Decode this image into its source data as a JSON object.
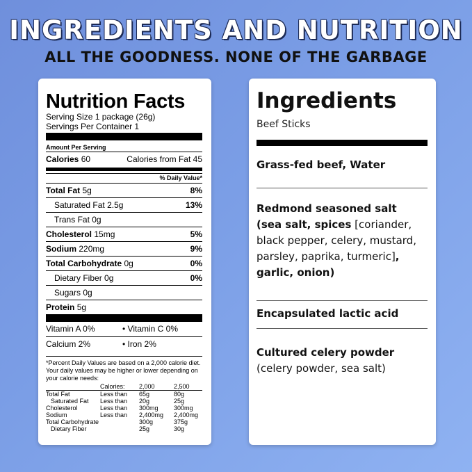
{
  "header": {
    "title": "INGREDIENTS AND NUTRITION",
    "subtitle": "ALL THE GOODNESS. NONE OF THE GARBAGE"
  },
  "nutrition": {
    "title": "Nutrition Facts",
    "serving_size": "Serving Size 1 package (26g)",
    "servings_per_container": "Servings Per Container 1",
    "amount_per_serving": "Amount Per Serving",
    "calories_label": "Calories",
    "calories_value": "60",
    "calories_fat": "Calories from Fat 45",
    "dv_header": "% Daily Value*",
    "rows": [
      {
        "label": "Total Fat",
        "amount": "5g",
        "dv": "8%"
      },
      {
        "label": "Saturated Fat",
        "amount": "2.5g",
        "dv": "13%"
      },
      {
        "label": "Trans Fat",
        "amount": "0g",
        "dv": ""
      },
      {
        "label": "Cholesterol",
        "amount": "15mg",
        "dv": "5%"
      },
      {
        "label": "Sodium",
        "amount": "220mg",
        "dv": "9%"
      },
      {
        "label": "Total Carbohydrate",
        "amount": "0g",
        "dv": "0%"
      },
      {
        "label": "Dietary Fiber",
        "amount": "0g",
        "dv": "0%"
      },
      {
        "label": "Sugars",
        "amount": "0g",
        "dv": ""
      },
      {
        "label": "Protein",
        "amount": "5g",
        "dv": ""
      }
    ],
    "vitamin_a": "Vitamin A 0%",
    "vitamin_c": "• Vitamin C 0%",
    "calcium": "Calcium 2%",
    "iron": "• Iron 2%",
    "footnote": "*Percent Daily Values are based on a 2,000 calorie diet. Your daily values may be higher or lower depending on your calorie needs:",
    "table_header": [
      "",
      "Calories:",
      "2,000",
      "2,500"
    ],
    "table_rows": [
      [
        "Total Fat",
        "Less than",
        "65g",
        "80g"
      ],
      [
        "Saturated Fat",
        "Less than",
        "20g",
        "25g"
      ],
      [
        "Cholesterol",
        "Less than",
        "300mg",
        "300mg"
      ],
      [
        "Sodium",
        "Less than",
        "2,400mg",
        "2,400mg"
      ],
      [
        "Total Carbohydrate",
        "",
        "300g",
        "375g"
      ],
      [
        "Dietary Fiber",
        "",
        "25g",
        "30g"
      ]
    ]
  },
  "ingredients": {
    "title": "Ingredients",
    "subtitle": "Beef Sticks",
    "sec1": "Grass-fed beef, Water",
    "sec2_a": "Redmond seasoned salt",
    "sec2_b": "(sea salt, spices",
    "sec2_c": "[coriander, black pepper, celery, mustard, parsley, paprika, turmeric]",
    "sec2_d": ", garlic, onion)",
    "sec3": "Encapsulated lactic acid",
    "sec4_a": "Cultured celery powder",
    "sec4_b": "(celery powder, sea salt)"
  }
}
